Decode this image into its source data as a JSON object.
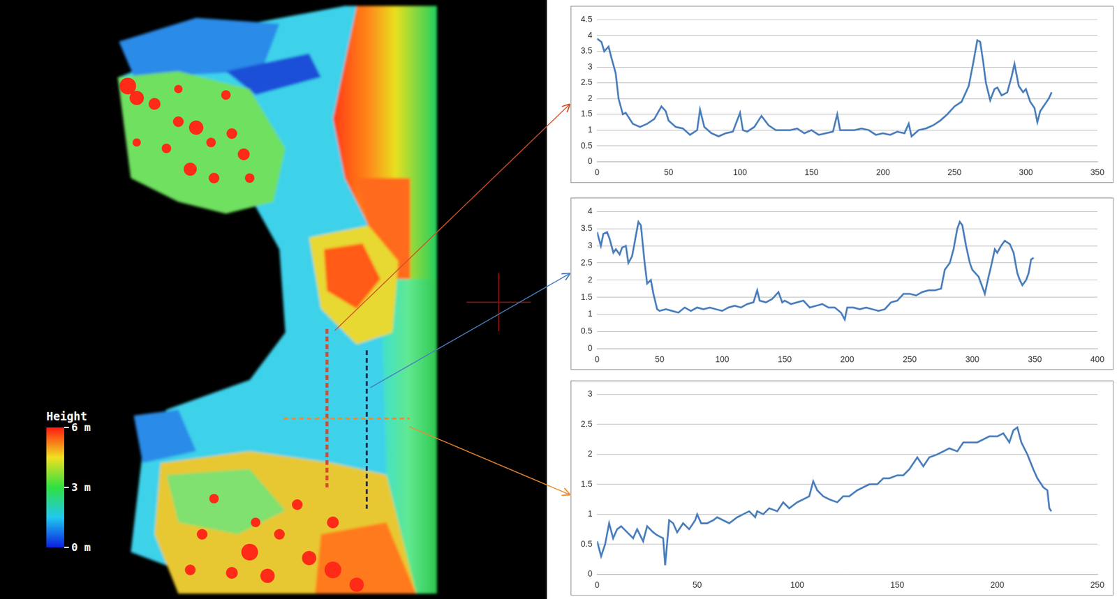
{
  "chart_data": [
    {
      "type": "line",
      "color": "#4a7ebb",
      "grid": "y",
      "xlim": [
        0,
        350
      ],
      "xticks": [
        0,
        50,
        100,
        150,
        200,
        250,
        300,
        350
      ],
      "ylim": [
        0,
        4.5
      ],
      "yticks": [
        0,
        0.5,
        1,
        1.5,
        2,
        2.5,
        3,
        3.5,
        4,
        4.5
      ],
      "x": [
        0,
        3,
        5,
        8,
        10,
        13,
        15,
        18,
        20,
        25,
        30,
        35,
        40,
        45,
        48,
        50,
        55,
        60,
        65,
        70,
        72,
        75,
        80,
        85,
        90,
        95,
        100,
        102,
        105,
        110,
        115,
        120,
        125,
        130,
        135,
        140,
        145,
        150,
        155,
        160,
        165,
        168,
        170,
        175,
        180,
        185,
        190,
        195,
        200,
        205,
        210,
        215,
        218,
        220,
        225,
        230,
        235,
        240,
        245,
        250,
        255,
        260,
        263,
        266,
        268,
        270,
        272,
        275,
        278,
        280,
        283,
        287,
        290,
        292,
        295,
        298,
        300,
        303,
        306,
        308,
        310,
        313,
        316,
        318
      ],
      "values": [
        3.9,
        3.8,
        3.5,
        3.65,
        3.3,
        2.8,
        2.0,
        1.5,
        1.55,
        1.2,
        1.1,
        1.2,
        1.35,
        1.75,
        1.6,
        1.3,
        1.1,
        1.05,
        0.85,
        1.0,
        1.65,
        1.1,
        0.9,
        0.8,
        0.9,
        0.95,
        1.55,
        1.0,
        0.95,
        1.1,
        1.45,
        1.15,
        1.0,
        1.0,
        1.0,
        1.05,
        0.9,
        1.0,
        0.85,
        0.9,
        0.95,
        1.5,
        1.0,
        1.0,
        1.0,
        1.05,
        1.0,
        0.85,
        0.9,
        0.85,
        0.95,
        0.9,
        1.2,
        0.8,
        1.0,
        1.05,
        1.15,
        1.3,
        1.5,
        1.75,
        1.9,
        2.4,
        3.1,
        3.85,
        3.8,
        3.2,
        2.5,
        1.95,
        2.3,
        2.35,
        2.1,
        2.2,
        2.7,
        3.1,
        2.4,
        2.2,
        2.3,
        1.9,
        1.7,
        1.25,
        1.6,
        1.8,
        2.0,
        2.2
      ]
    },
    {
      "type": "line",
      "color": "#4a7ebb",
      "grid": "y",
      "xlim": [
        0,
        400
      ],
      "xticks": [
        0,
        50,
        100,
        150,
        200,
        250,
        300,
        350,
        400
      ],
      "ylim": [
        0,
        4
      ],
      "yticks": [
        0,
        0.5,
        1,
        1.5,
        2,
        2.5,
        3,
        3.5,
        4
      ],
      "x": [
        0,
        3,
        5,
        8,
        10,
        13,
        15,
        18,
        20,
        23,
        25,
        28,
        30,
        33,
        35,
        38,
        40,
        43,
        45,
        48,
        50,
        55,
        60,
        65,
        70,
        75,
        80,
        85,
        90,
        95,
        100,
        105,
        110,
        115,
        120,
        125,
        128,
        130,
        135,
        140,
        145,
        148,
        150,
        155,
        160,
        165,
        170,
        175,
        180,
        185,
        190,
        195,
        198,
        200,
        205,
        210,
        215,
        220,
        225,
        230,
        235,
        240,
        245,
        250,
        255,
        260,
        265,
        270,
        275,
        278,
        282,
        285,
        288,
        290,
        292,
        295,
        298,
        300,
        305,
        308,
        310,
        313,
        315,
        318,
        320,
        323,
        326,
        330,
        333,
        336,
        338,
        340,
        343,
        345,
        347,
        349
      ],
      "values": [
        3.4,
        3.0,
        3.35,
        3.4,
        3.2,
        2.8,
        2.9,
        2.75,
        2.95,
        3.0,
        2.5,
        2.7,
        3.1,
        3.7,
        3.6,
        2.5,
        1.9,
        2.0,
        1.6,
        1.15,
        1.1,
        1.15,
        1.1,
        1.05,
        1.2,
        1.1,
        1.2,
        1.15,
        1.2,
        1.15,
        1.1,
        1.2,
        1.25,
        1.2,
        1.3,
        1.35,
        1.7,
        1.4,
        1.35,
        1.45,
        1.65,
        1.35,
        1.4,
        1.3,
        1.35,
        1.4,
        1.2,
        1.25,
        1.3,
        1.2,
        1.2,
        1.05,
        0.85,
        1.2,
        1.2,
        1.15,
        1.2,
        1.15,
        1.1,
        1.15,
        1.35,
        1.4,
        1.6,
        1.6,
        1.55,
        1.65,
        1.7,
        1.7,
        1.75,
        2.3,
        2.5,
        2.9,
        3.5,
        3.7,
        3.6,
        3.0,
        2.5,
        2.3,
        2.1,
        1.8,
        1.6,
        2.1,
        2.4,
        2.9,
        2.8,
        3.0,
        3.15,
        3.05,
        2.8,
        2.2,
        2.0,
        1.85,
        2.0,
        2.2,
        2.6,
        2.65
      ]
    },
    {
      "type": "line",
      "color": "#4a7ebb",
      "grid": "y",
      "xlim": [
        0,
        250
      ],
      "xticks": [
        0,
        50,
        100,
        150,
        200,
        250
      ],
      "ylim": [
        0,
        3
      ],
      "yticks": [
        0,
        0.5,
        1,
        1.5,
        2,
        2.5,
        3
      ],
      "x": [
        0,
        2,
        4,
        6,
        8,
        10,
        12,
        15,
        18,
        20,
        23,
        25,
        28,
        30,
        33,
        34,
        36,
        38,
        40,
        43,
        46,
        49,
        50,
        52,
        55,
        58,
        60,
        63,
        66,
        70,
        73,
        76,
        79,
        80,
        83,
        86,
        90,
        93,
        96,
        100,
        103,
        106,
        108,
        110,
        113,
        116,
        120,
        123,
        126,
        130,
        133,
        136,
        140,
        143,
        146,
        150,
        153,
        156,
        160,
        163,
        166,
        170,
        173,
        176,
        180,
        183,
        186,
        190,
        193,
        196,
        200,
        203,
        206,
        208,
        210,
        212,
        215,
        218,
        220,
        223,
        225,
        226,
        227
      ],
      "values": [
        0.55,
        0.3,
        0.5,
        0.85,
        0.6,
        0.75,
        0.8,
        0.7,
        0.6,
        0.75,
        0.55,
        0.8,
        0.7,
        0.65,
        0.6,
        0.15,
        0.9,
        0.85,
        0.7,
        0.85,
        0.75,
        0.9,
        1.0,
        0.85,
        0.85,
        0.9,
        0.95,
        0.9,
        0.85,
        0.95,
        1.0,
        1.05,
        0.95,
        1.05,
        1.0,
        1.1,
        1.05,
        1.2,
        1.1,
        1.2,
        1.25,
        1.3,
        1.55,
        1.4,
        1.3,
        1.25,
        1.2,
        1.3,
        1.3,
        1.4,
        1.45,
        1.5,
        1.5,
        1.6,
        1.6,
        1.65,
        1.65,
        1.75,
        1.95,
        1.8,
        1.95,
        2.0,
        2.05,
        2.1,
        2.05,
        2.2,
        2.2,
        2.2,
        2.25,
        2.3,
        2.3,
        2.35,
        2.2,
        2.4,
        2.45,
        2.2,
        2.0,
        1.75,
        1.6,
        1.45,
        1.4,
        1.1,
        1.05
      ]
    }
  ],
  "height_legend": {
    "title": "Height",
    "range": [
      0,
      6
    ],
    "ticks": [
      {
        "value": 0,
        "label": "0 m"
      },
      {
        "value": 3,
        "label": "3 m"
      },
      {
        "value": 6,
        "label": "6 m"
      }
    ]
  }
}
